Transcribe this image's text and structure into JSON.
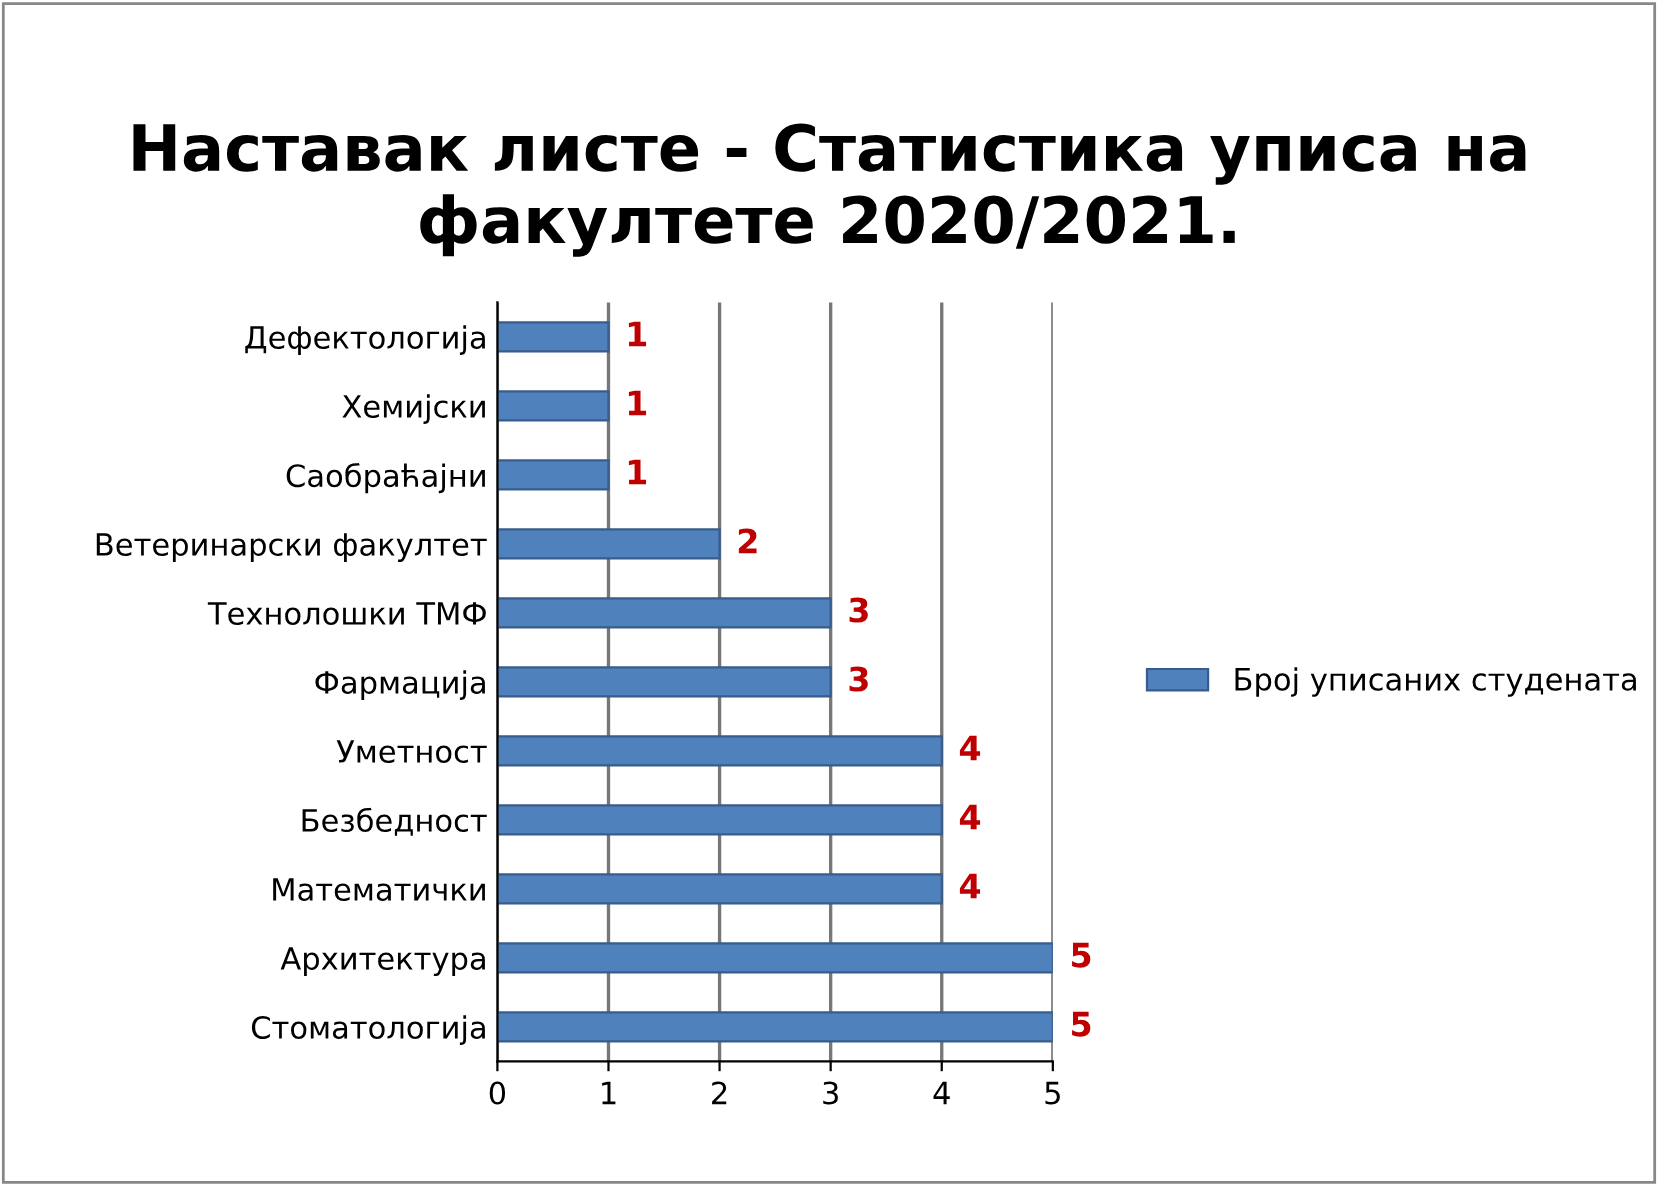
{
  "chart_data": {
    "type": "bar",
    "orientation": "horizontal",
    "title": "Наставак листе - Статистика уписа на факултете 2020/2021.",
    "categories": [
      "Дефектологија",
      "Хемијски",
      "Саобраћајни",
      "Ветеринарски факултет",
      "Технолошки ТМФ",
      "Фармација",
      "Уметност",
      "Безбедност",
      "Математички",
      "Архитектура",
      "Стоматологија"
    ],
    "series": [
      {
        "name": "Број уписаних студената",
        "color": "#4f81bd",
        "values": [
          1,
          1,
          1,
          2,
          3,
          3,
          4,
          4,
          4,
          5,
          5
        ]
      }
    ],
    "data_labels": true,
    "xlim": [
      0,
      5
    ],
    "xticks": [
      0,
      1,
      2,
      3,
      4,
      5
    ],
    "grid": "x",
    "legend": "right"
  }
}
